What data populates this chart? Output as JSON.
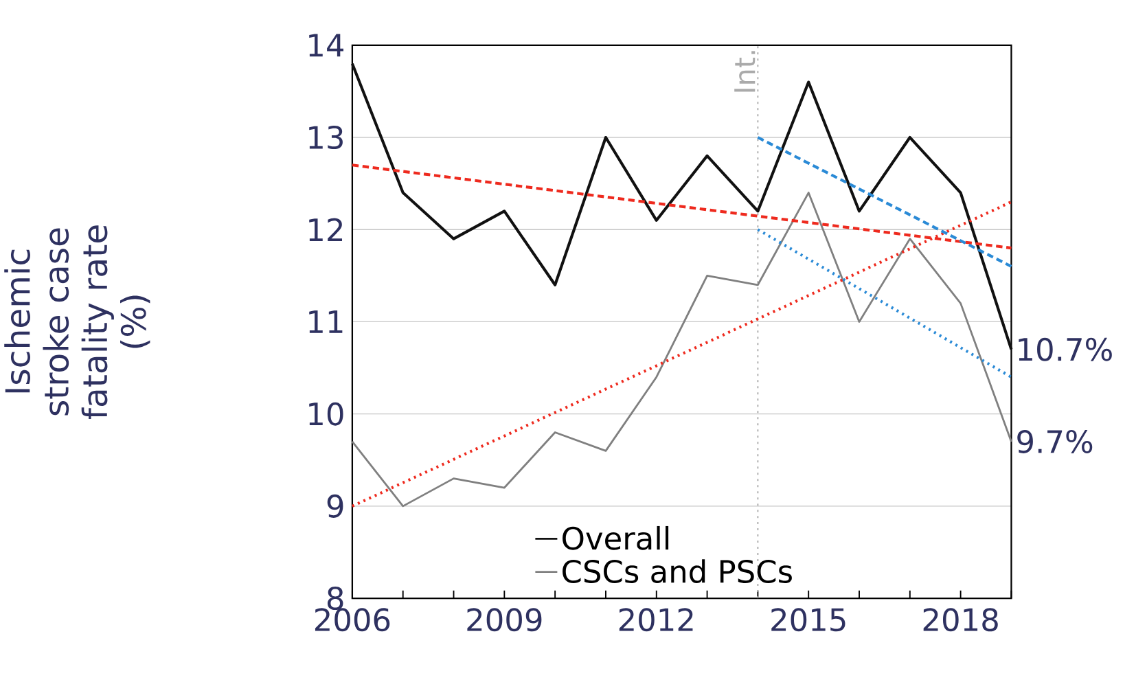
{
  "chart_data": {
    "type": "line",
    "ylabel": "Ischemic stroke case fatality rate (%)",
    "x": [
      2006,
      2007,
      2008,
      2009,
      2010,
      2011,
      2012,
      2013,
      2014,
      2015,
      2016,
      2017,
      2018,
      2019
    ],
    "series": [
      {
        "name": "Overall",
        "color": "#111111",
        "values": [
          13.8,
          12.4,
          11.9,
          12.2,
          11.4,
          13.0,
          12.1,
          12.8,
          12.2,
          13.6,
          12.2,
          13.0,
          12.4,
          10.7
        ]
      },
      {
        "name": "CSCs and PSCs",
        "color": "#808080",
        "values": [
          9.7,
          9.0,
          9.3,
          9.2,
          9.8,
          9.6,
          10.4,
          11.5,
          11.4,
          12.4,
          11.0,
          11.9,
          11.2,
          9.7
        ]
      },
      {
        "type": "line",
        "color": "#ee2a1e",
        "line_style": "dashed",
        "x": [
          2006,
          2019
        ],
        "values": [
          12.7,
          11.8
        ]
      },
      {
        "type": "line",
        "color": "#ee2a1e",
        "line_style": "dotted",
        "x": [
          2006,
          2019
        ],
        "values": [
          9.0,
          12.3
        ]
      },
      {
        "type": "line",
        "color": "#2a8ad6",
        "line_style": "dashed",
        "x": [
          2014,
          2019
        ],
        "values": [
          13.0,
          11.6
        ]
      },
      {
        "type": "line",
        "color": "#2a8ad6",
        "line_style": "dotted",
        "x": [
          2014,
          2019
        ],
        "values": [
          12.0,
          10.4
        ]
      }
    ],
    "xlim": [
      2006,
      2019
    ],
    "xticks": [
      2006,
      {
        "value": 2007,
        "label": null
      },
      {
        "value": 2008,
        "label": null
      },
      2009,
      {
        "value": 2010,
        "label": null
      },
      {
        "value": 2011,
        "label": null
      },
      2012,
      {
        "value": 2013,
        "label": null
      },
      {
        "value": 2014,
        "label": null
      },
      2015,
      {
        "value": 2016,
        "label": null
      },
      {
        "value": 2017,
        "label": null
      },
      2018,
      {
        "value": 2019,
        "label": null
      }
    ],
    "ylim": [
      8,
      14
    ],
    "yticks": [
      8,
      9,
      10,
      11,
      12,
      13,
      14
    ],
    "grid": "y",
    "legend": "bottom",
    "marker": "none",
    "line_style": "solid",
    "ref_lines": [
      {
        "axis": "x",
        "value": 2014,
        "label": "Int.",
        "color": "#aaaaaa",
        "line_style": "dotted"
      }
    ],
    "annotations": [
      {
        "text": "10.7%",
        "x": 2019,
        "y": 10.7
      },
      {
        "text": "9.7%",
        "x": 2019,
        "y": 9.7
      }
    ]
  }
}
